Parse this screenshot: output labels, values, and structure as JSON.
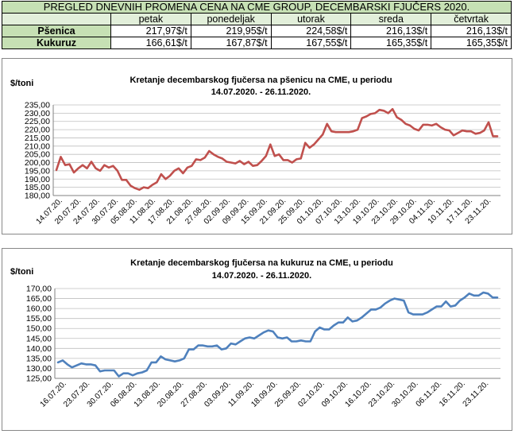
{
  "table": {
    "title": "PREGLED DNEVNIH PROMENA CENA NA CME GROUP, DECEMBARSKI  FJUČERS 2020.",
    "columns": [
      "petak",
      "ponedeljak",
      "utorak",
      "sreda",
      "četvrtak"
    ],
    "rows": [
      {
        "label": "Pšenica",
        "values": [
          "217,97$/t",
          "219,95$/t",
          "224,58$/t",
          "216,13$/t",
          "216,13$/t"
        ]
      },
      {
        "label": "Kukuruz",
        "values": [
          "166,61$/t",
          "167,87$/t",
          "167,55$/t",
          "165,35$/t",
          "165,35$/t"
        ]
      }
    ]
  },
  "colors": {
    "table_title_bg": "#c6e0b4",
    "table_header_bg": "#e2efda",
    "wheat_line": "#c0504d",
    "corn_line": "#4f81bd"
  },
  "chart_data": [
    {
      "type": "line",
      "title_line1": "Kretanje decembarskog fjučersa na  pšenicu na CME, u periodu",
      "title_line2": "14.07.2020. - 26.11.2020.",
      "ylabel": "$/toni",
      "ylim": [
        180,
        235
      ],
      "yticks": [
        "180,00",
        "185,00",
        "190,00",
        "195,00",
        "200,00",
        "205,00",
        "210,00",
        "215,00",
        "220,00",
        "225,00",
        "230,00",
        "235,00"
      ],
      "x_tick_labels": [
        "14.07.20.",
        "20.07.20.",
        "24.07.20.",
        "30.07.20.",
        "05.08.20.",
        "11.08.20.",
        "17.08.20.",
        "21.08.20.",
        "27.08.20.",
        "02.09.20.",
        "09.09.20.",
        "15.09.20.",
        "21.09.20.",
        "25.09.20.",
        "01.10.20.",
        "07.10.20.",
        "13.10.20.",
        "19.10.20.",
        "23.10.20.",
        "29.10.20.",
        "04.11.20.",
        "10.11.20.",
        "17.11.20.",
        "23.11.20."
      ],
      "grid": true,
      "legend": "none",
      "series": [
        {
          "values": [
            195.5,
            203.5,
            198.5,
            199,
            194,
            196.5,
            198.5,
            196.5,
            200.5,
            196.5,
            195,
            198.5,
            197,
            198,
            195,
            189.5,
            189.5,
            186,
            184.5,
            183.5,
            185,
            184.5,
            186.5,
            188,
            193,
            190,
            192,
            195,
            196.5,
            193.5,
            197,
            198,
            202,
            201.5,
            203,
            207,
            205,
            203.5,
            202.5,
            200.5,
            200,
            199.5,
            201,
            199,
            200.5,
            198,
            198.5,
            201,
            204,
            211,
            204,
            205,
            201.5,
            201.5,
            200,
            202,
            202.5,
            212,
            209,
            211,
            214,
            217,
            223.5,
            219,
            218.5,
            218.5,
            218.5,
            218.5,
            219,
            220,
            227,
            228,
            229.5,
            230,
            232,
            231.5,
            230,
            232.5,
            227.5,
            226,
            223.5,
            222.5,
            220.5,
            219.5,
            223,
            223,
            222.5,
            223.5,
            221.5,
            220,
            219.5,
            216.5,
            218,
            219.5,
            219,
            219,
            217.5,
            218,
            219.5,
            224.5,
            216,
            216
          ]
        }
      ]
    },
    {
      "type": "line",
      "title_line1": "Kretanje decembarskog fjučersa na  kukuruz na CME, u periodu",
      "title_line2": "14.07.2020. - 26.11.2020.",
      "ylabel": "$/toni",
      "ylim": [
        125,
        170
      ],
      "yticks": [
        "125,00",
        "130,00",
        "135,00",
        "140,00",
        "145,00",
        "150,00",
        "155,00",
        "160,00",
        "165,00",
        "170,00"
      ],
      "x_tick_labels": [
        "16.07.20.",
        "23.07.20.",
        "30.07.20.",
        "06.08.20.",
        "13.08.20.",
        "20.08.20.",
        "27.08.20.",
        "03.09.20.",
        "11.09.20.",
        "18.09.20.",
        "25.09.20.",
        "02.10.20.",
        "09.10.20.",
        "16.10.20.",
        "23.10.20.",
        "30.10.20.",
        "06.11.20.",
        "16.11.20.",
        "23.11.20."
      ],
      "grid": true,
      "legend": "none",
      "series": [
        {
          "values": [
            133,
            134,
            132,
            130.5,
            131.5,
            132.5,
            132,
            132,
            131.5,
            128.5,
            129,
            129,
            129,
            126,
            127.5,
            127.5,
            126.5,
            127.5,
            128,
            129,
            133,
            133,
            136,
            134.5,
            134,
            133.5,
            134,
            135,
            139.5,
            139.5,
            141.5,
            141.5,
            141,
            141,
            141.5,
            139.5,
            140,
            142.5,
            142,
            143.5,
            145,
            145.5,
            145,
            146.5,
            148,
            149,
            148.5,
            145.5,
            145,
            145.5,
            143.5,
            143.5,
            144,
            143.5,
            143.5,
            148.5,
            150.5,
            149.5,
            149.5,
            151.5,
            153,
            153,
            155.5,
            153.5,
            154,
            155.5,
            157.5,
            159.5,
            159.5,
            160.5,
            162.5,
            164,
            165,
            164.5,
            164,
            158,
            157,
            157,
            157,
            158,
            159.5,
            161,
            161,
            163.5,
            161,
            161.5,
            164,
            165.5,
            167.5,
            166.5,
            166.5,
            168,
            167.5,
            165.5,
            165.5
          ]
        }
      ]
    }
  ]
}
